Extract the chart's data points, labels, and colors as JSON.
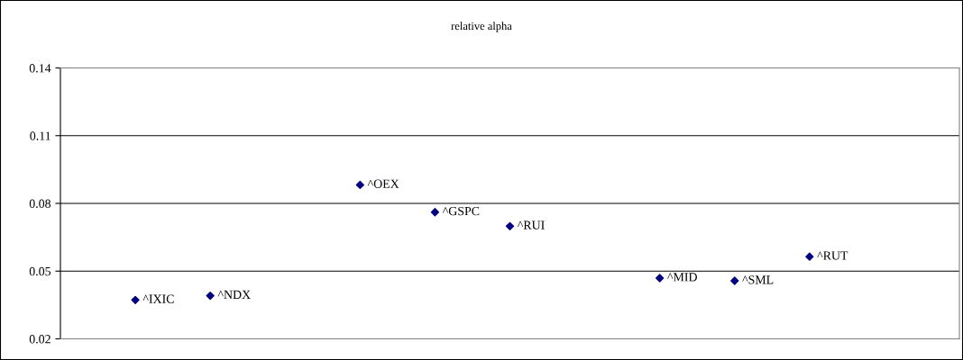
{
  "chart_data": {
    "type": "scatter",
    "title": "relative alpha",
    "categories": [
      null,
      null,
      null,
      null,
      null,
      null,
      null,
      null,
      null,
      null,
      null
    ],
    "series": [
      {
        "name": "^IXIC",
        "color": "#000080",
        "values": [
          0.0372,
          null,
          null,
          null,
          null,
          null,
          null,
          null,
          null,
          null,
          null
        ]
      },
      {
        "name": "^NDX",
        "color": "#000080",
        "values": [
          null,
          0.0391,
          null,
          null,
          null,
          null,
          null,
          null,
          null,
          null,
          null
        ]
      },
      {
        "name": "^OEX",
        "color": "#000080",
        "values": [
          null,
          null,
          null,
          0.0882,
          null,
          null,
          null,
          null,
          null,
          null,
          null
        ]
      },
      {
        "name": "^GSPC",
        "color": "#000080",
        "values": [
          null,
          null,
          null,
          null,
          0.0761,
          null,
          null,
          null,
          null,
          null,
          null
        ]
      },
      {
        "name": "^RUI",
        "color": "#000080",
        "values": [
          null,
          null,
          null,
          null,
          null,
          0.0699,
          null,
          null,
          null,
          null,
          null
        ]
      },
      {
        "name": "^MID",
        "color": "#000080",
        "values": [
          null,
          null,
          null,
          null,
          null,
          null,
          null,
          0.0469,
          null,
          null,
          null
        ]
      },
      {
        "name": "^SML",
        "color": "#000080",
        "values": [
          null,
          null,
          null,
          null,
          null,
          null,
          null,
          null,
          0.0457,
          null,
          null
        ]
      },
      {
        "name": "^RUT",
        "color": "#000080",
        "values": [
          null,
          null,
          null,
          null,
          null,
          null,
          null,
          null,
          null,
          0.0564,
          null
        ]
      }
    ],
    "ylim": [
      0.02,
      0.14
    ],
    "yticks": [
      0.02,
      0.05,
      0.08,
      0.11,
      0.14
    ],
    "grid": "y",
    "marker": "diamond",
    "legend": false
  }
}
